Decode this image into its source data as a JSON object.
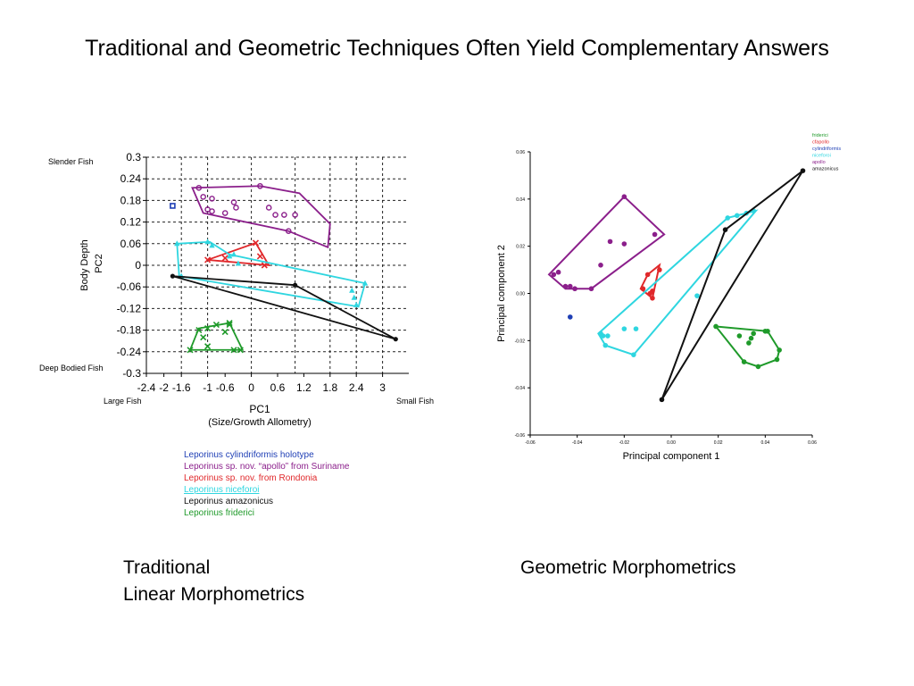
{
  "page": {
    "title": "Traditional and Geometric Techniques Often Yield Complementary Answers",
    "caption_left_line1": "Traditional",
    "caption_left_line2": "Linear Morphometrics",
    "caption_right": "Geometric Morphometrics"
  },
  "chart_data": [
    {
      "type": "scatter",
      "title": "",
      "xlabel": "PC1",
      "xlabel_sub": "(Size/Growth Allometry)",
      "ylabel": "Body Depth",
      "ylabel_sub": "PC2",
      "xlim": [
        -2.4,
        3.6
      ],
      "ylim": [
        -0.3,
        0.3
      ],
      "xticks": [
        "-2.4",
        "-2",
        "-1.6",
        "-1",
        "-0.6",
        "0",
        "0.6",
        "1.2",
        "1.8",
        "2.4",
        "3"
      ],
      "yticks": [
        "0.3",
        "0.24",
        "0.18",
        "0.12",
        "0.06",
        "0",
        "-0.06",
        "-0.12",
        "-0.18",
        "-0.24",
        "-0.3"
      ],
      "annotations": {
        "top_left": "Slender Fish",
        "bottom_left": "Deep Bodied Fish",
        "x_left": "Large Fish",
        "x_right": "Small Fish"
      },
      "grid": true,
      "legend_position": "bottom",
      "series": [
        {
          "name": "Leporinus cylindriformis holotype",
          "color": "#1f3fb5",
          "marker": "square",
          "points": [
            [
              -1.8,
              0.165
            ]
          ],
          "hull": []
        },
        {
          "name": "Leporinus sp. nov. “apollo” from Suriname",
          "color": "#8b1f8b",
          "marker": "circle",
          "points": [
            [
              -1.2,
              0.215
            ],
            [
              -1.1,
              0.19
            ],
            [
              -0.9,
              0.185
            ],
            [
              -0.4,
              0.175
            ],
            [
              -1.0,
              0.155
            ],
            [
              -0.9,
              0.15
            ],
            [
              -0.6,
              0.145
            ],
            [
              -0.35,
              0.16
            ],
            [
              0.2,
              0.22
            ],
            [
              0.4,
              0.16
            ],
            [
              0.55,
              0.14
            ],
            [
              0.75,
              0.14
            ],
            [
              1.0,
              0.14
            ],
            [
              0.85,
              0.095
            ]
          ],
          "hull": [
            [
              -1.35,
              0.215
            ],
            [
              0.2,
              0.22
            ],
            [
              1.1,
              0.2
            ],
            [
              1.8,
              0.115
            ],
            [
              1.75,
              0.05
            ],
            [
              0.85,
              0.095
            ],
            [
              -1.1,
              0.145
            ]
          ]
        },
        {
          "name": "Leporinus sp. nov. from Rondonia",
          "color": "#e0282b",
          "marker": "x",
          "points": [
            [
              0.1,
              0.062
            ],
            [
              -0.6,
              0.02
            ],
            [
              0.3,
              0.0
            ],
            [
              0.2,
              0.025
            ],
            [
              -1.0,
              0.015
            ]
          ],
          "hull": [
            [
              0.1,
              0.062
            ],
            [
              0.4,
              0.0
            ],
            [
              -1.0,
              0.015
            ]
          ]
        },
        {
          "name": "Leporinus niceforoi",
          "color": "#2fd6e0",
          "marker": "triangle",
          "points": [
            [
              -1.7,
              0.06
            ],
            [
              -1.0,
              0.065
            ],
            [
              -0.9,
              0.055
            ],
            [
              -0.5,
              0.025
            ],
            [
              -0.4,
              0.03
            ],
            [
              -0.3,
              0.005
            ],
            [
              -1.6,
              -0.03
            ],
            [
              2.3,
              -0.07
            ],
            [
              2.35,
              -0.09
            ],
            [
              2.6,
              -0.05
            ],
            [
              2.4,
              -0.11
            ]
          ],
          "hull": [
            [
              -1.7,
              0.06
            ],
            [
              -0.95,
              0.065
            ],
            [
              -0.5,
              0.03
            ],
            [
              2.6,
              -0.05
            ],
            [
              2.45,
              -0.115
            ],
            [
              -1.65,
              -0.03
            ]
          ]
        },
        {
          "name": "Leporinus amazonicus",
          "color": "#111111",
          "marker": "circle",
          "points": [
            [
              -1.8,
              -0.03
            ],
            [
              1.0,
              -0.055
            ],
            [
              3.3,
              -0.205
            ]
          ],
          "hull": [
            [
              -1.8,
              -0.03
            ],
            [
              1.0,
              -0.055
            ],
            [
              3.3,
              -0.205
            ]
          ]
        },
        {
          "name": "Leporinus friderici",
          "color": "#1f9a2a",
          "marker": "x",
          "points": [
            [
              -1.2,
              -0.18
            ],
            [
              -1.0,
              -0.175
            ],
            [
              -0.8,
              -0.165
            ],
            [
              -0.5,
              -0.165
            ],
            [
              -0.6,
              -0.185
            ],
            [
              -1.1,
              -0.2
            ],
            [
              -1.0,
              -0.225
            ],
            [
              -1.4,
              -0.235
            ],
            [
              -0.4,
              -0.235
            ],
            [
              -0.25,
              -0.235
            ],
            [
              -0.5,
              -0.16
            ]
          ],
          "hull": [
            [
              -1.2,
              -0.175
            ],
            [
              -0.5,
              -0.16
            ],
            [
              -0.2,
              -0.235
            ],
            [
              -1.4,
              -0.235
            ]
          ]
        }
      ]
    },
    {
      "type": "scatter",
      "title": "",
      "xlabel": "Principal component 1",
      "ylabel": "Principal component 2",
      "xlim": [
        -0.06,
        0.06
      ],
      "ylim": [
        -0.06,
        0.06
      ],
      "xticks": [
        "-0.06",
        "-0.04",
        "-0.02",
        "0.00",
        "0.02",
        "0.04",
        "0.06"
      ],
      "yticks": [
        "0.06",
        "0.04",
        "0.02",
        "0.00",
        "-0.02",
        "-0.04",
        "-0.06"
      ],
      "grid": false,
      "legend_position": "top-right",
      "series": [
        {
          "name": "friderici",
          "color": "#1f9a2a",
          "points": [
            [
              0.019,
              -0.014
            ],
            [
              0.029,
              -0.018
            ],
            [
              0.035,
              -0.017
            ],
            [
              0.04,
              -0.016
            ],
            [
              0.041,
              -0.016
            ],
            [
              0.034,
              -0.019
            ],
            [
              0.033,
              -0.021
            ],
            [
              0.046,
              -0.024
            ],
            [
              0.045,
              -0.028
            ],
            [
              0.031,
              -0.029
            ],
            [
              0.037,
              -0.031
            ]
          ],
          "hull": [
            [
              0.019,
              -0.014
            ],
            [
              0.041,
              -0.016
            ],
            [
              0.046,
              -0.024
            ],
            [
              0.045,
              -0.028
            ],
            [
              0.037,
              -0.031
            ],
            [
              0.031,
              -0.029
            ]
          ]
        },
        {
          "name": "cfapollo",
          "color": "#e0282b",
          "points": [
            [
              -0.005,
              0.01
            ],
            [
              -0.01,
              0.008
            ],
            [
              -0.012,
              0.002
            ],
            [
              -0.008,
              0.001
            ],
            [
              -0.008,
              -0.002
            ],
            [
              -0.009,
              0.0
            ]
          ],
          "hull": [
            [
              -0.005,
              0.012
            ],
            [
              -0.008,
              -0.002
            ],
            [
              -0.013,
              0.002
            ],
            [
              -0.01,
              0.008
            ]
          ]
        },
        {
          "name": "cylindriformis",
          "color": "#1f3fb5",
          "points": [
            [
              -0.043,
              -0.01
            ]
          ],
          "hull": []
        },
        {
          "name": "niceforoi",
          "color": "#2fd6e0",
          "points": [
            [
              -0.03,
              -0.017
            ],
            [
              -0.029,
              -0.018
            ],
            [
              -0.027,
              -0.018
            ],
            [
              -0.028,
              -0.022
            ],
            [
              -0.02,
              -0.015
            ],
            [
              -0.015,
              -0.015
            ],
            [
              -0.016,
              -0.026
            ],
            [
              0.011,
              -0.001
            ],
            [
              0.024,
              0.032
            ],
            [
              0.028,
              0.033
            ],
            [
              0.032,
              0.034
            ],
            [
              0.035,
              0.035
            ]
          ],
          "hull": [
            [
              -0.031,
              -0.017
            ],
            [
              0.024,
              0.032
            ],
            [
              0.036,
              0.035
            ],
            [
              -0.016,
              -0.026
            ],
            [
              -0.028,
              -0.022
            ]
          ]
        },
        {
          "name": "apollo",
          "color": "#8b1f8b",
          "points": [
            [
              -0.02,
              0.041
            ],
            [
              -0.026,
              0.022
            ],
            [
              -0.02,
              0.021
            ],
            [
              -0.03,
              0.012
            ],
            [
              -0.048,
              0.009
            ],
            [
              -0.05,
              0.008
            ],
            [
              -0.045,
              0.003
            ],
            [
              -0.041,
              0.002
            ],
            [
              -0.034,
              0.002
            ],
            [
              -0.007,
              0.025
            ],
            [
              -0.043,
              0.003
            ]
          ],
          "hull": [
            [
              -0.02,
              0.041
            ],
            [
              -0.003,
              0.025
            ],
            [
              -0.034,
              0.002
            ],
            [
              -0.045,
              0.002
            ],
            [
              -0.052,
              0.008
            ]
          ]
        },
        {
          "name": "amazonicus",
          "color": "#111111",
          "points": [
            [
              0.056,
              0.052
            ],
            [
              0.023,
              0.027
            ],
            [
              -0.004,
              -0.045
            ]
          ],
          "hull": [
            [
              0.056,
              0.052
            ],
            [
              0.023,
              0.027
            ],
            [
              -0.004,
              -0.045
            ]
          ]
        }
      ]
    }
  ]
}
